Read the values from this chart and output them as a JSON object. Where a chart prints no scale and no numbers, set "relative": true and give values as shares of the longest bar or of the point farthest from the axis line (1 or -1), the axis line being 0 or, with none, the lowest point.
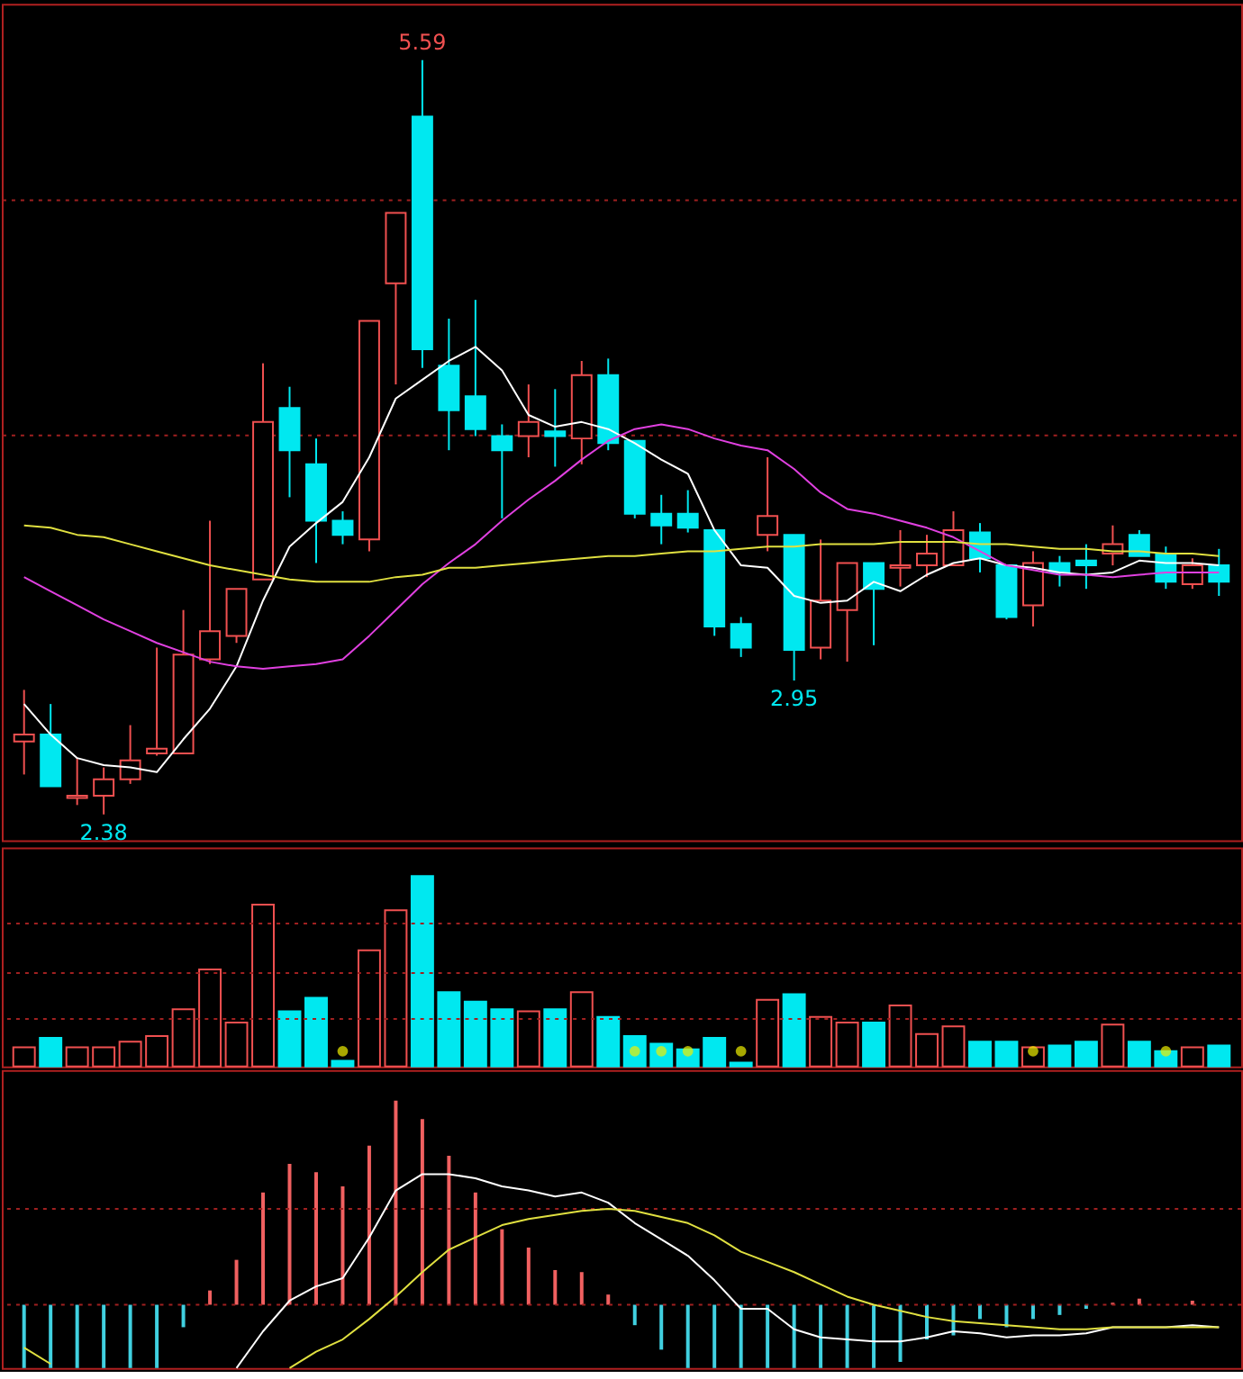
{
  "chart_data": [
    {
      "type": "candlestick",
      "categories": [
        null,
        null,
        null,
        null,
        null,
        null,
        null,
        null,
        null,
        null,
        null,
        null,
        null,
        null,
        null,
        null,
        null,
        null,
        null,
        null,
        null,
        null,
        null,
        null,
        null,
        null,
        null,
        null,
        null,
        null,
        null,
        null,
        null,
        null,
        null,
        null,
        null,
        null,
        null,
        null,
        null,
        null,
        null,
        null,
        null,
        null
      ],
      "ohlc": [
        [
          2.69,
          2.91,
          2.55,
          2.72
        ],
        [
          2.72,
          2.85,
          2.5,
          2.5
        ],
        [
          2.45,
          2.62,
          2.42,
          2.46
        ],
        [
          2.46,
          2.58,
          2.38,
          2.53
        ],
        [
          2.53,
          2.76,
          2.51,
          2.61
        ],
        [
          2.64,
          3.09,
          2.63,
          2.66
        ],
        [
          2.64,
          3.25,
          2.64,
          3.06
        ],
        [
          3.04,
          3.63,
          3.02,
          3.16
        ],
        [
          3.14,
          3.34,
          3.11,
          3.34
        ],
        [
          3.38,
          4.3,
          3.38,
          4.05
        ],
        [
          4.11,
          4.2,
          3.73,
          3.93
        ],
        [
          3.87,
          3.98,
          3.45,
          3.63
        ],
        [
          3.63,
          3.67,
          3.53,
          3.57
        ],
        [
          3.55,
          4.48,
          3.5,
          4.48
        ],
        [
          4.64,
          4.94,
          4.21,
          4.94
        ],
        [
          5.35,
          5.59,
          4.28,
          4.36
        ],
        [
          4.29,
          4.49,
          3.93,
          4.1
        ],
        [
          4.16,
          4.57,
          3.99,
          4.02
        ],
        [
          3.99,
          4.04,
          3.64,
          3.93
        ],
        [
          3.99,
          4.21,
          3.9,
          4.05
        ],
        [
          4.01,
          4.19,
          3.86,
          3.99
        ],
        [
          3.98,
          4.31,
          3.87,
          4.25
        ],
        [
          4.25,
          4.32,
          3.93,
          3.96
        ],
        [
          3.97,
          3.97,
          3.64,
          3.66
        ],
        [
          3.66,
          3.74,
          3.53,
          3.61
        ],
        [
          3.66,
          3.76,
          3.58,
          3.6
        ],
        [
          3.59,
          3.59,
          3.14,
          3.18
        ],
        [
          3.19,
          3.22,
          3.05,
          3.09
        ],
        [
          3.57,
          3.9,
          3.5,
          3.65
        ],
        [
          3.57,
          3.57,
          2.95,
          3.08
        ],
        [
          3.09,
          3.55,
          3.04,
          3.29
        ],
        [
          3.25,
          3.45,
          3.03,
          3.45
        ],
        [
          3.45,
          3.45,
          3.1,
          3.34
        ],
        [
          3.43,
          3.59,
          3.35,
          3.44
        ],
        [
          3.44,
          3.57,
          3.39,
          3.49
        ],
        [
          3.44,
          3.67,
          3.44,
          3.59
        ],
        [
          3.58,
          3.62,
          3.41,
          3.47
        ],
        [
          3.44,
          3.44,
          3.21,
          3.22
        ],
        [
          3.27,
          3.5,
          3.18,
          3.45
        ],
        [
          3.45,
          3.48,
          3.35,
          3.41
        ],
        [
          3.46,
          3.53,
          3.34,
          3.44
        ],
        [
          3.49,
          3.61,
          3.44,
          3.53
        ],
        [
          3.57,
          3.59,
          3.48,
          3.48
        ],
        [
          3.49,
          3.52,
          3.34,
          3.37
        ],
        [
          3.36,
          3.47,
          3.34,
          3.44
        ],
        [
          3.44,
          3.51,
          3.31,
          3.37
        ]
      ],
      "colors": [
        "#f05050",
        "#00e8f0",
        "#f05050",
        "#f05050",
        "#f05050",
        "#f05050",
        "#f05050",
        "#f05050",
        "#f05050",
        "#f05050",
        "#00e8f0",
        "#00e8f0",
        "#00e8f0",
        "#f05050",
        "#f05050",
        "#00e8f0",
        "#00e8f0",
        "#00e8f0",
        "#00e8f0",
        "#f05050",
        "#00e8f0",
        "#f05050",
        "#00e8f0",
        "#00e8f0",
        "#00e8f0",
        "#00e8f0",
        "#00e8f0",
        "#00e8f0",
        "#f05050",
        "#00e8f0",
        "#f05050",
        "#f05050",
        "#00e8f0",
        "#f05050",
        "#f05050",
        "#f05050",
        "#00e8f0",
        "#00e8f0",
        "#f05050",
        "#00e8f0",
        "#00e8f0",
        "#f05050",
        "#00e8f0",
        "#00e8f0",
        "#f05050",
        "#00e8f0"
      ],
      "series": [
        {
          "type": "line",
          "color": "#ffffff",
          "values": [
            2.85,
            2.72,
            2.62,
            2.59,
            2.58,
            2.56,
            2.7,
            2.83,
            3.01,
            3.29,
            3.52,
            3.62,
            3.71,
            3.9,
            4.15,
            4.23,
            4.31,
            4.37,
            4.27,
            4.08,
            4.03,
            4.05,
            4.02,
            3.96,
            3.89,
            3.83,
            3.59,
            3.44,
            3.43,
            3.31,
            3.28,
            3.29,
            3.37,
            3.33,
            3.4,
            3.45,
            3.47,
            3.44,
            3.43,
            3.41,
            3.4,
            3.41,
            3.46,
            3.45,
            3.45,
            3.44
          ]
        },
        {
          "type": "line",
          "color": "#e040e0",
          "values": [
            3.39,
            3.33,
            3.27,
            3.21,
            3.16,
            3.11,
            3.07,
            3.03,
            3.01,
            3.0,
            3.01,
            3.02,
            3.04,
            3.14,
            3.25,
            3.36,
            3.45,
            3.53,
            3.63,
            3.72,
            3.8,
            3.89,
            3.97,
            4.02,
            4.04,
            4.02,
            3.98,
            3.95,
            3.93,
            3.85,
            3.75,
            3.68,
            3.66,
            3.63,
            3.6,
            3.56,
            3.5,
            3.44,
            3.42,
            3.4,
            3.4,
            3.39,
            3.4,
            3.41,
            3.41,
            3.41
          ]
        },
        {
          "type": "line",
          "color": "#e0e040",
          "values": [
            3.61,
            3.6,
            3.57,
            3.56,
            3.53,
            3.5,
            3.47,
            3.44,
            3.42,
            3.4,
            3.38,
            3.37,
            3.37,
            3.37,
            3.39,
            3.4,
            3.43,
            3.43,
            3.44,
            3.45,
            3.46,
            3.47,
            3.48,
            3.48,
            3.49,
            3.5,
            3.5,
            3.51,
            3.52,
            3.52,
            3.53,
            3.53,
            3.53,
            3.54,
            3.54,
            3.54,
            3.53,
            3.53,
            3.52,
            3.51,
            3.51,
            3.5,
            3.5,
            3.49,
            3.49,
            3.48
          ]
        }
      ],
      "ylim": [
        2.27,
        5.83
      ],
      "yticks": [
        {
          "value": 4.0,
          "label": null
        },
        {
          "value": 5.0,
          "label": null
        }
      ],
      "grid": "y",
      "tick_labels": false,
      "annotations": [
        {
          "text": "5.59",
          "y": 5.59
        },
        {
          "text": "2.38",
          "y": 2.38
        },
        {
          "text": "2.95",
          "y": 2.95
        }
      ]
    },
    {
      "type": "bar",
      "relative": true,
      "tick_labels": false,
      "categories": [
        null,
        null,
        null,
        null,
        null,
        null,
        null,
        null,
        null,
        null,
        null,
        null,
        null,
        null,
        null,
        null,
        null,
        null,
        null,
        null,
        null,
        null,
        null,
        null,
        null,
        null,
        null,
        null,
        null,
        null,
        null,
        null,
        null,
        null,
        null,
        null,
        null,
        null,
        null,
        null,
        null,
        null,
        null,
        null,
        null,
        null
      ],
      "ref_lines": [
        {
          "axis": "y",
          "value": 0.25,
          "color": "#a02020",
          "line_style": "dotted"
        },
        {
          "axis": "y",
          "value": 0.49,
          "color": "#a02020",
          "line_style": "dotted"
        },
        {
          "axis": "y",
          "value": 0.75,
          "color": "#a02020",
          "line_style": "dotted"
        }
      ],
      "series": [
        {
          "type": "bar",
          "values": [
            0.1,
            0.15,
            0.1,
            0.1,
            0.13,
            0.16,
            0.3,
            0.51,
            0.23,
            0.85,
            0.29,
            0.36,
            0.03,
            0.61,
            0.82,
            1,
            0.39,
            0.34,
            0.3,
            0.29,
            0.3,
            0.39,
            0.26,
            0.16,
            0.12,
            0.09,
            0.15,
            0.02,
            0.35,
            0.38,
            0.26,
            0.23,
            0.23,
            0.32,
            0.17,
            0.21,
            0.13,
            0.13,
            0.1,
            0.11,
            0.13,
            0.22,
            0.13,
            0.08,
            0.1,
            0.11
          ],
          "colors": [
            "#f05050",
            "#00e8f0",
            "#f05050",
            "#f05050",
            "#f05050",
            "#f05050",
            "#f05050",
            "#f05050",
            "#f05050",
            "#f05050",
            "#00e8f0",
            "#00e8f0",
            "#00e8f0",
            "#f05050",
            "#f05050",
            "#00e8f0",
            "#00e8f0",
            "#00e8f0",
            "#00e8f0",
            "#f05050",
            "#00e8f0",
            "#f05050",
            "#00e8f0",
            "#00e8f0",
            "#00e8f0",
            "#00e8f0",
            "#00e8f0",
            "#00e8f0",
            "#f05050",
            "#00e8f0",
            "#f05050",
            "#f05050",
            "#00e8f0",
            "#f05050",
            "#f05050",
            "#f05050",
            "#00e8f0",
            "#00e8f0",
            "#f05050",
            "#00e8f0",
            "#00e8f0",
            "#f05050",
            "#00e8f0",
            "#00e8f0",
            "#f05050",
            "#00e8f0"
          ]
        },
        {
          "type": "scatter",
          "color": "#f0f000",
          "marker": "circle",
          "values": [
            null,
            null,
            null,
            null,
            null,
            null,
            null,
            null,
            null,
            null,
            null,
            null,
            0.08,
            null,
            null,
            null,
            null,
            null,
            null,
            null,
            null,
            null,
            null,
            0.08,
            0.08,
            0.08,
            null,
            0.08,
            null,
            null,
            null,
            null,
            null,
            null,
            null,
            null,
            null,
            null,
            0.08,
            null,
            null,
            null,
            null,
            0.08,
            null,
            null
          ]
        }
      ]
    },
    {
      "type": "bar",
      "relative": true,
      "tick_labels": false,
      "categories": [
        null,
        null,
        null,
        null,
        null,
        null,
        null,
        null,
        null,
        null,
        null,
        null,
        null,
        null,
        null,
        null,
        null,
        null,
        null,
        null,
        null,
        null,
        null,
        null,
        null,
        null,
        null,
        null,
        null,
        null,
        null,
        null,
        null,
        null,
        null,
        null,
        null,
        null,
        null,
        null,
        null,
        null,
        null,
        null,
        null,
        null
      ],
      "series": [
        {
          "type": "bar",
          "values": [
            -0.31,
            -0.31,
            -0.31,
            -0.31,
            -0.31,
            -0.31,
            -0.11,
            0.07,
            0.22,
            0.55,
            0.69,
            0.65,
            0.58,
            0.78,
            1,
            0.91,
            0.73,
            0.55,
            0.37,
            0.28,
            0.17,
            0.16,
            0.05,
            -0.1,
            -0.22,
            -0.31,
            -0.31,
            -0.31,
            -0.31,
            -0.31,
            -0.31,
            -0.31,
            -0.31,
            -0.28,
            -0.17,
            -0.15,
            -0.07,
            -0.11,
            -0.07,
            -0.05,
            -0.02,
            0.01,
            0.03,
            0,
            0.02,
            0
          ],
          "colors": [
            "#40d0e0",
            "#40d0e0",
            "#40d0e0",
            "#40d0e0",
            "#40d0e0",
            "#40d0e0",
            "#40d0e0",
            "#f06060",
            "#f06060",
            "#f06060",
            "#f06060",
            "#f06060",
            "#f06060",
            "#f06060",
            "#f06060",
            "#f06060",
            "#f06060",
            "#f06060",
            "#f06060",
            "#f06060",
            "#f06060",
            "#f06060",
            "#f06060",
            "#40d0e0",
            "#40d0e0",
            "#40d0e0",
            "#40d0e0",
            "#40d0e0",
            "#40d0e0",
            "#40d0e0",
            "#40d0e0",
            "#40d0e0",
            "#40d0e0",
            "#40d0e0",
            "#40d0e0",
            "#40d0e0",
            "#40d0e0",
            "#40d0e0",
            "#40d0e0",
            "#40d0e0",
            "#40d0e0",
            "#f06060",
            "#f06060",
            "#f06060",
            "#f06060",
            "#f06060"
          ]
        },
        {
          "type": "line",
          "color": "#ffffff",
          "values": [
            null,
            null,
            null,
            null,
            null,
            null,
            null,
            null,
            -0.31,
            -0.13,
            0.02,
            0.09,
            0.13,
            0.33,
            0.56,
            0.64,
            0.64,
            0.62,
            0.58,
            0.56,
            0.53,
            0.55,
            0.5,
            0.4,
            0.32,
            0.24,
            0.12,
            -0.02,
            -0.02,
            -0.12,
            -0.16,
            -0.17,
            -0.18,
            -0.18,
            -0.16,
            -0.13,
            -0.14,
            -0.16,
            -0.15,
            -0.15,
            -0.14,
            -0.11,
            -0.11,
            -0.11,
            -0.1,
            -0.11
          ]
        },
        {
          "type": "line",
          "color": "#e0e040",
          "values": [
            -0.21,
            -0.29,
            null,
            null,
            null,
            null,
            null,
            null,
            null,
            null,
            -0.31,
            -0.23,
            -0.17,
            -0.07,
            0.04,
            0.16,
            0.27,
            0.33,
            0.39,
            0.42,
            0.44,
            0.46,
            0.47,
            0.46,
            0.43,
            0.4,
            0.34,
            0.26,
            0.21,
            0.16,
            0.1,
            0.04,
            0,
            -0.03,
            -0.06,
            -0.08,
            -0.09,
            -0.1,
            -0.11,
            -0.12,
            -0.12,
            -0.11,
            -0.11,
            -0.11,
            -0.11,
            -0.11
          ]
        }
      ],
      "ref_lines": [
        {
          "axis": "y",
          "value": 0,
          "color": "#a02020",
          "line_style": "dotted"
        },
        {
          "axis": "y",
          "value": 0.47,
          "color": "#a02020",
          "line_style": "dotted"
        }
      ]
    }
  ]
}
